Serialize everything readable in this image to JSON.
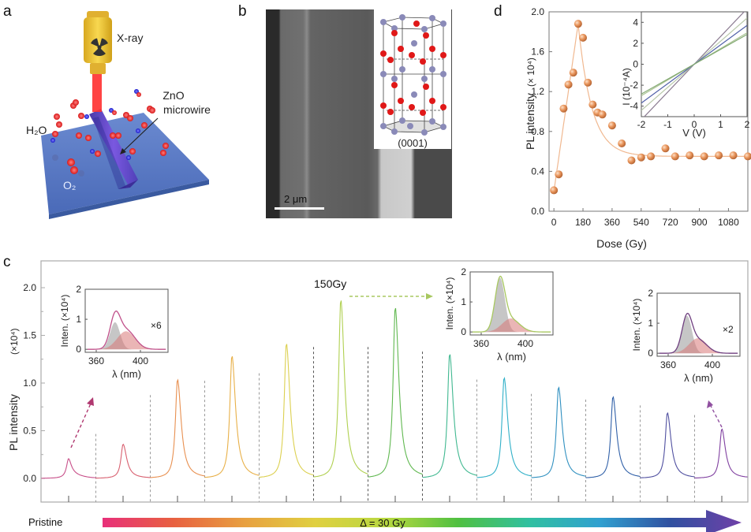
{
  "panel_labels": {
    "a": "a",
    "b": "b",
    "c": "c",
    "d": "d"
  },
  "panel_a": {
    "xray_label": "X-ray",
    "wire_label_line1": "ZnO",
    "wire_label_line2": "microwire",
    "h2o_label": "H₂O",
    "o2_label": "O₂",
    "icon": "radiation-icon"
  },
  "panel_b": {
    "scale_bar_label": "2 μm",
    "crystal_plane_label": "(0001)"
  },
  "chart_data": [
    {
      "id": "d",
      "type": "scatter",
      "title": "",
      "xlabel": "Dose  (Gy)",
      "ylabel": "PL intensity",
      "ylabel_unit": "(× 10⁴)",
      "xlim": [
        -30,
        1200
      ],
      "ylim": [
        0,
        2.0
      ],
      "xticks": [
        0,
        180,
        360,
        540,
        720,
        900,
        1080
      ],
      "yticks": [
        0.0,
        0.4,
        0.8,
        1.2,
        1.6,
        2.0
      ],
      "ytick_labels": [
        "0.0",
        "0.4",
        "0.8",
        "1.2",
        "1.6",
        "2.0"
      ],
      "marker_color": "#e8945a",
      "fit_color": "#f0b890",
      "points": {
        "x": [
          0,
          30,
          60,
          90,
          120,
          150,
          180,
          210,
          240,
          270,
          300,
          360,
          420,
          480,
          540,
          600,
          690,
          750,
          840,
          930,
          1020,
          1110,
          1200
        ],
        "y": [
          0.21,
          0.37,
          1.03,
          1.27,
          1.39,
          1.88,
          1.74,
          1.29,
          1.07,
          0.99,
          0.97,
          0.86,
          0.68,
          0.51,
          0.54,
          0.55,
          0.63,
          0.55,
          0.56,
          0.55,
          0.56,
          0.56,
          0.55
        ]
      },
      "inset": {
        "type": "line",
        "xlabel": "V (V)",
        "ylabel": "I (10⁻⁴A)",
        "xlim": [
          -2,
          2
        ],
        "ylim": [
          -5,
          5
        ],
        "xticks": [
          -2,
          -1,
          0,
          1,
          2
        ],
        "yticks": [
          -4,
          -2,
          0,
          2,
          4
        ],
        "series": [
          {
            "name": "line-1",
            "slope": 2.65,
            "color": "#8a7a90"
          },
          {
            "name": "line-2",
            "slope": 2.2,
            "color": "#b8c8a8"
          },
          {
            "name": "line-3",
            "slope": 1.85,
            "color": "#5060a8"
          },
          {
            "name": "line-4",
            "slope": 1.5,
            "color": "#a8c090"
          },
          {
            "name": "line-5",
            "slope": 1.42,
            "color": "#80a870"
          }
        ]
      }
    },
    {
      "id": "c",
      "type": "line",
      "ylabel": "PL  intensity",
      "ylabel_unit": "(×10⁴)",
      "ylim": [
        -0.25,
        2.2
      ],
      "yticks": [
        0.0,
        0.5,
        1.0,
        1.5,
        2.0
      ],
      "ytick_labels": [
        "0.0",
        "0.5",
        "1.0",
        "1.5",
        "2.0"
      ],
      "annotation_150": "150Gy",
      "peaks": [
        {
          "dose_gy": 0,
          "peak": 0.21,
          "color": "#c8508a"
        },
        {
          "dose_gy": 30,
          "peak": 0.36,
          "color": "#d86070"
        },
        {
          "dose_gy": 60,
          "peak": 1.04,
          "color": "#e89050"
        },
        {
          "dose_gy": 90,
          "peak": 1.29,
          "color": "#e8b048"
        },
        {
          "dose_gy": 120,
          "peak": 1.42,
          "color": "#dcd050"
        },
        {
          "dose_gy": 150,
          "peak": 1.88,
          "color": "#b0d050"
        },
        {
          "dose_gy": 180,
          "peak": 1.8,
          "color": "#60b850"
        },
        {
          "dose_gy": 210,
          "peak": 1.31,
          "color": "#40b890"
        },
        {
          "dose_gy": 240,
          "peak": 1.06,
          "color": "#30b0c8"
        },
        {
          "dose_gy": 270,
          "peak": 0.96,
          "color": "#3090c0"
        },
        {
          "dose_gy": 300,
          "peak": 0.86,
          "color": "#3060a8"
        },
        {
          "dose_gy": 330,
          "peak": 0.69,
          "color": "#5050a0"
        },
        {
          "dose_gy": 360,
          "peak": 0.52,
          "color": "#8040a0"
        }
      ],
      "insets": [
        {
          "name": "pristine",
          "xlabel": "λ (nm)",
          "ylabel": "Inten.  (×10⁴)",
          "xticks": [
            360,
            400
          ],
          "yticks": [
            0,
            1,
            2
          ],
          "multiplier": "×6",
          "total_peak": 1.25,
          "gray_peak": 0.9,
          "red_peak": 0.6,
          "line_color": "#c0508a"
        },
        {
          "name": "150gy",
          "xlabel": "λ (nm)",
          "ylabel": "Inten.  (×10⁴)",
          "xticks": [
            360,
            400
          ],
          "yticks": [
            0,
            1,
            2
          ],
          "multiplier": "",
          "total_peak": 1.85,
          "gray_peak": 1.8,
          "red_peak": 0.45,
          "line_color": "#a8c860"
        },
        {
          "name": "final",
          "xlabel": "λ (nm)",
          "ylabel": "Inten.  (×10⁴)",
          "xticks": [
            360,
            400
          ],
          "yticks": [
            0,
            1,
            2
          ],
          "multiplier": "×2",
          "total_peak": 1.32,
          "gray_peak": 1.25,
          "red_peak": 0.5,
          "line_color": "#704080"
        }
      ]
    }
  ],
  "dose_bar": {
    "start_label": "Pristine",
    "step_label": "Δ = 30 Gy",
    "gradient": [
      "#e8307a",
      "#e86040",
      "#e8a040",
      "#e0d040",
      "#b8d840",
      "#50c040",
      "#30c0a0",
      "#30a0d0",
      "#3050a0",
      "#7040a8"
    ]
  }
}
